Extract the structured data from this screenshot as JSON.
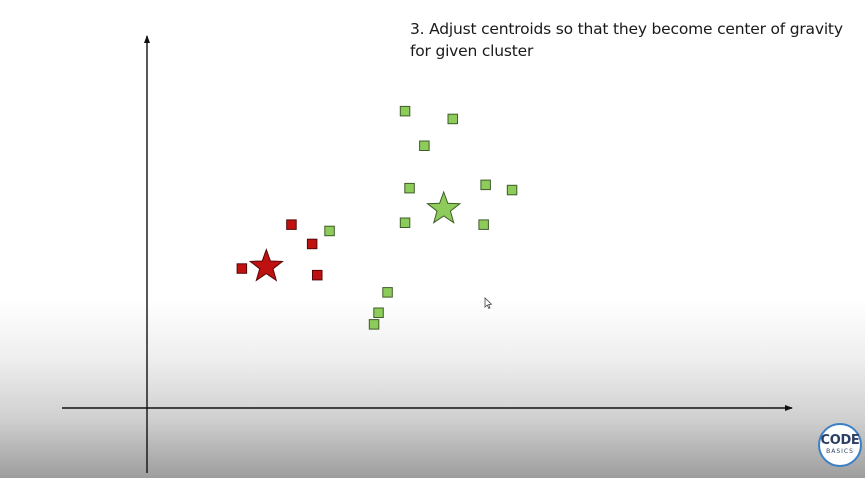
{
  "title": {
    "line1": "3. Adjust centroids so that they become center of gravity",
    "line2": "for given cluster"
  },
  "chart_data": {
    "type": "scatter",
    "title": "3. Adjust centroids so that they become center of gravity for given cluster",
    "xlabel": "",
    "ylabel": "",
    "grid": false,
    "xlim": [
      0,
      100
    ],
    "ylim": [
      0,
      100
    ],
    "series": [
      {
        "name": "red cluster",
        "color": "#c01111",
        "marker": "square",
        "points": [
          [
            14.7,
            37.5
          ],
          [
            22.4,
            49.3
          ],
          [
            25.6,
            44.1
          ],
          [
            26.4,
            35.7
          ]
        ]
      },
      {
        "name": "green cluster",
        "color": "#8dcc5a",
        "marker": "square",
        "points": [
          [
            28.3,
            47.6
          ],
          [
            35.2,
            22.5
          ],
          [
            35.9,
            25.6
          ],
          [
            37.3,
            31.1
          ],
          [
            40.0,
            49.8
          ],
          [
            40.7,
            59.1
          ],
          [
            40.0,
            79.8
          ],
          [
            43.0,
            70.5
          ],
          [
            47.4,
            77.7
          ],
          [
            52.5,
            60.0
          ],
          [
            52.2,
            49.3
          ],
          [
            56.6,
            58.6
          ]
        ]
      }
    ],
    "centroids": [
      {
        "name": "red centroid",
        "color": "#c01111",
        "marker": "star",
        "x": 18.5,
        "y": 38.0
      },
      {
        "name": "green centroid",
        "color": "#8dcc5a",
        "marker": "star",
        "x": 46.0,
        "y": 53.5
      }
    ]
  },
  "logo": {
    "line1": "CODE",
    "line2": "BASICS"
  }
}
